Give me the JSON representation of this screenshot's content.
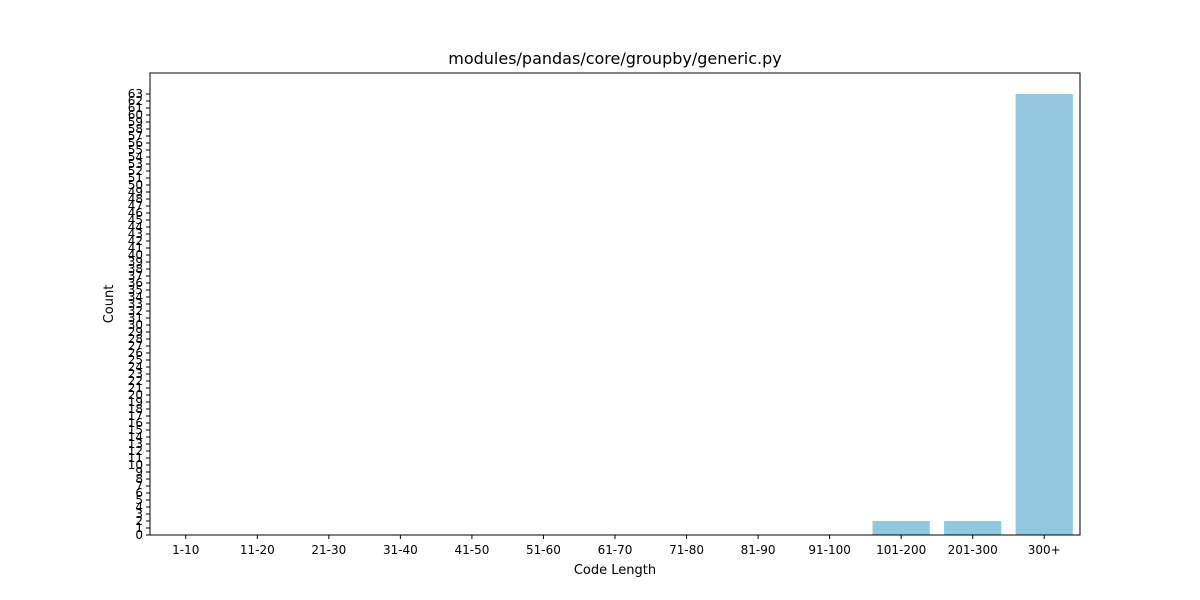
{
  "chart_data": {
    "type": "bar",
    "title": "modules/pandas/core/groupby/generic.py",
    "xlabel": "Code Length",
    "ylabel": "Count",
    "categories": [
      "1-10",
      "11-20",
      "21-30",
      "31-40",
      "41-50",
      "51-60",
      "61-70",
      "71-80",
      "81-90",
      "91-100",
      "101-200",
      "201-300",
      "300+"
    ],
    "values": [
      0,
      0,
      0,
      0,
      0,
      0,
      0,
      0,
      0,
      0,
      2,
      2,
      63
    ],
    "ylim": [
      0,
      66
    ],
    "yticks": [
      0,
      1,
      2,
      3,
      4,
      5,
      6,
      7,
      8,
      9,
      10,
      11,
      12,
      13,
      14,
      15,
      16,
      17,
      18,
      19,
      20,
      21,
      22,
      23,
      24,
      25,
      26,
      27,
      28,
      29,
      30,
      31,
      32,
      33,
      34,
      35,
      36,
      37,
      38,
      39,
      40,
      41,
      42,
      43,
      44,
      45,
      46,
      47,
      48,
      49,
      50,
      51,
      52,
      53,
      54,
      55,
      56,
      57,
      58,
      59,
      60,
      61,
      62,
      63
    ],
    "bar_color": "#92c8de",
    "grid": false,
    "legend": "none"
  }
}
